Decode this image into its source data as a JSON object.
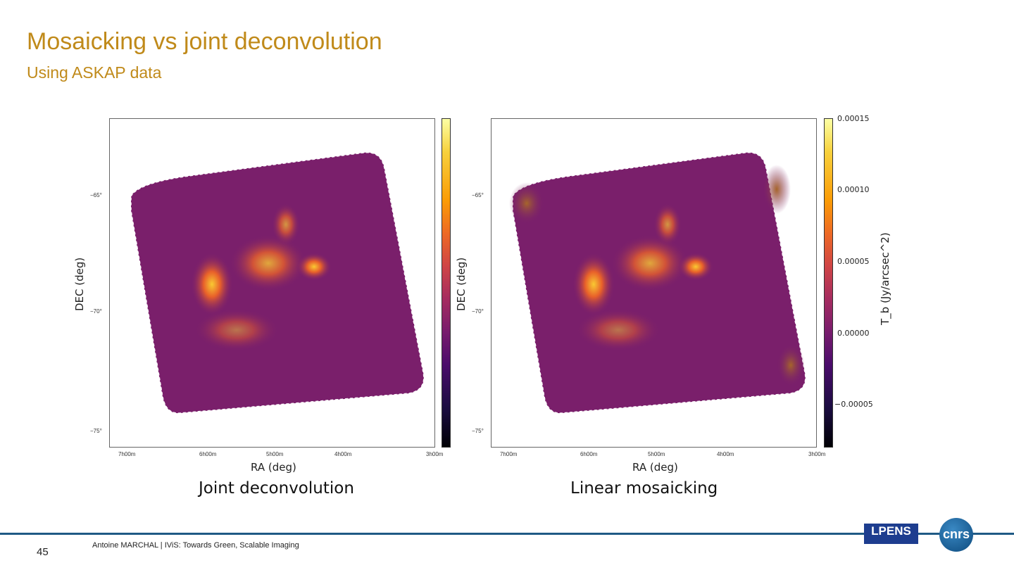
{
  "title": "Mosaicking vs joint deconvolution",
  "subtitle": "Using ASKAP data",
  "panels": [
    {
      "caption": "Joint deconvolution",
      "xlabel": "RA (deg)",
      "ylabel": "DEC (deg)"
    },
    {
      "caption": "Linear mosaicking",
      "xlabel": "RA (deg)",
      "ylabel": "DEC (deg)"
    }
  ],
  "ra_ticks": [
    "7h00m",
    "6h00m",
    "5h00m",
    "4h00m",
    "3h00m"
  ],
  "dec_ticks": [
    "−65°",
    "−70°",
    "−75°"
  ],
  "colorbar": {
    "label": "T_b (Jy/arcsec^2)",
    "ticks": [
      "0.00015",
      "0.00010",
      "0.00005",
      "0.00000",
      "−0.00005"
    ]
  },
  "footer": {
    "page": "45",
    "text": "Antoine MARCHAL  | IViS: Towards Green, Scalable Imaging",
    "logo1": "LPENS",
    "logo2": "cnrs"
  },
  "colors": {
    "accent": "#c08a1a",
    "footer_line": "#1f5a85"
  }
}
